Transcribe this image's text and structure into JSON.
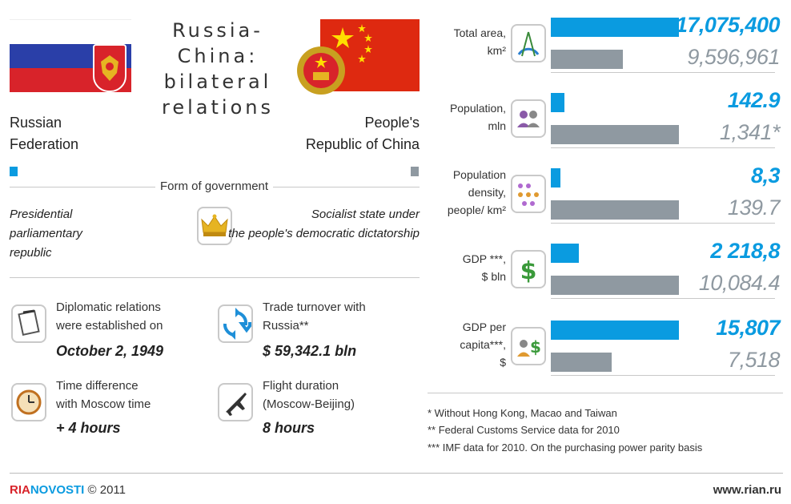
{
  "header": {
    "title_line1": "Russia-China:",
    "title_line2": "bilateral",
    "title_line3": "relations"
  },
  "russia": {
    "name_line1": "Russian",
    "name_line2": "Federation",
    "color": "#0a9be0"
  },
  "china": {
    "name_line1": "People's",
    "name_line2": "Republic of China",
    "color": "#8f99a1"
  },
  "government": {
    "section_title": "Form of government",
    "russia_line1": "Presidential",
    "russia_line2": "parliamentary",
    "russia_line3": "republic",
    "china_line1": "Socialist state under",
    "china_line2": "the people's democratic dictatorship",
    "icon": "crown-icon"
  },
  "facts": [
    {
      "icon": "calendar-icon",
      "line1": "Diplomatic relations",
      "line2": "were established on",
      "value": "October 2, 1949"
    },
    {
      "icon": "trade-arrows-icon",
      "line1": "Trade turnover with",
      "line2": "Russia**",
      "value": "$ 59,342.1 bln"
    },
    {
      "icon": "clock-icon",
      "line1": "Time difference",
      "line2": "with Moscow time",
      "value": "+ 4 hours"
    },
    {
      "icon": "airplane-icon",
      "line1": "Flight duration",
      "line2": "(Moscow-Beijing)",
      "value": "8 hours"
    }
  ],
  "chart_data": {
    "type": "bar",
    "orientation": "horizontal",
    "series_colors": {
      "russia": "#0a9be0",
      "china": "#8f99a1"
    },
    "indicators": [
      {
        "label_lines": [
          "Total area,",
          "km²"
        ],
        "icon": "compass-icon",
        "russia": 17075400,
        "china": 9596961,
        "russia_text": "17,075,400",
        "china_text": "9,596,961"
      },
      {
        "label_lines": [
          "Population,",
          "mln"
        ],
        "icon": "people-icon",
        "russia": 142.9,
        "china": 1341,
        "russia_text": "142.9",
        "china_text": "1,341*"
      },
      {
        "label_lines": [
          "Population",
          "density,",
          "people/ km²"
        ],
        "icon": "crowd-icon",
        "russia": 8.3,
        "china": 139.7,
        "russia_text": "8,3",
        "china_text": "139.7"
      },
      {
        "label_lines": [
          "GDP ***,",
          "$ bln"
        ],
        "icon": "dollar-icon",
        "russia": 2218.8,
        "china": 10084.4,
        "russia_text": "2 218,8",
        "china_text": "10,084.4"
      },
      {
        "label_lines": [
          "GDP per",
          "capita***,",
          "$"
        ],
        "icon": "person-dollar-icon",
        "russia": 15807,
        "china": 7518,
        "russia_text": "15,807",
        "china_text": "7,518"
      }
    ]
  },
  "footnotes": [
    "* Without Hong Kong, Macao and Taiwan",
    "** Federal Customs Service data for 2010",
    "*** IMF data for 2010. On the purchasing power parity basis"
  ],
  "footer": {
    "brand_ria": "RIA",
    "brand_novosti": "NOVOSTI",
    "copyright": "© 2011",
    "url": "www.rian.ru"
  }
}
